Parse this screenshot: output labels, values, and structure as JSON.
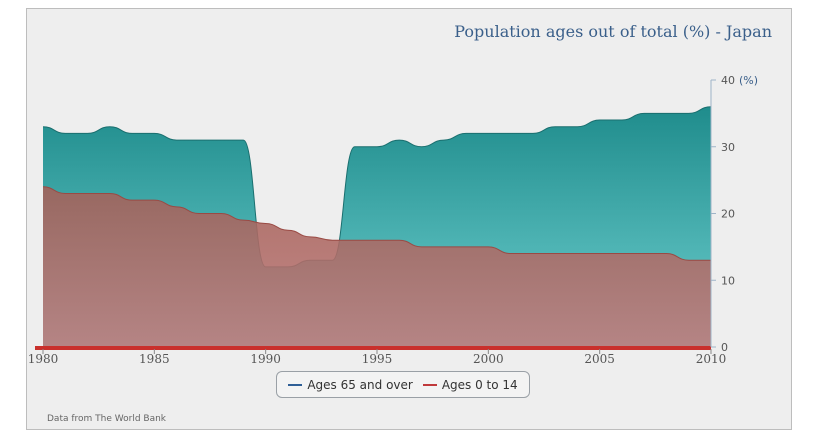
{
  "chart_data": {
    "type": "area",
    "title": "Population ages out of total (%) - Japan",
    "y_unit": "(%)",
    "x": [
      1980,
      1981,
      1982,
      1983,
      1984,
      1985,
      1986,
      1987,
      1988,
      1989,
      1990,
      1991,
      1992,
      1993,
      1994,
      1995,
      1996,
      1997,
      1998,
      1999,
      2000,
      2001,
      2002,
      2003,
      2004,
      2005,
      2006,
      2007,
      2008,
      2009,
      2010
    ],
    "xticks": [
      "1980",
      "1985",
      "1990",
      "1995",
      "2000",
      "2005",
      "2010"
    ],
    "yticks": [
      "0",
      "10",
      "20",
      "30",
      "40"
    ],
    "ylim": [
      0,
      40
    ],
    "xlim": [
      1980,
      2010
    ],
    "y_axis_position": "right",
    "legend_position": "bottom-center",
    "series": [
      {
        "name": "Ages 65 and over",
        "color": "#2e8b8b",
        "values": [
          33,
          32,
          32,
          33,
          32,
          32,
          31,
          31,
          31,
          31,
          12,
          12,
          13,
          13,
          30,
          30,
          31,
          30,
          31,
          32,
          32,
          32,
          32,
          33,
          33,
          34,
          34,
          35,
          35,
          35,
          36
        ]
      },
      {
        "name": "Ages 0 to 14",
        "color": "#c0393b",
        "values": [
          24,
          23,
          23,
          23,
          22,
          22,
          21,
          20,
          20,
          19,
          18.5,
          17.5,
          16.5,
          16,
          16,
          16,
          16,
          15,
          15,
          15,
          15,
          14,
          14,
          14,
          14,
          14,
          14,
          14,
          14,
          13,
          13
        ]
      }
    ]
  },
  "credit": "Data from The World Bank"
}
